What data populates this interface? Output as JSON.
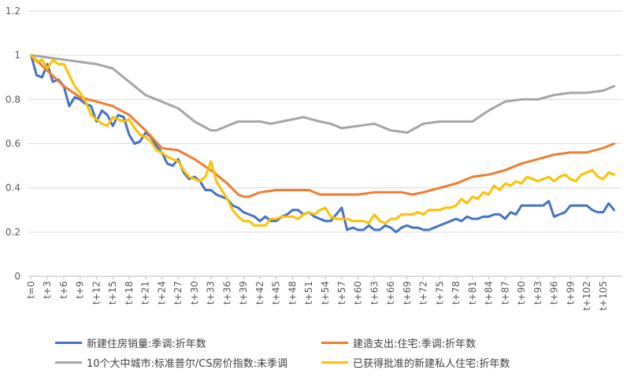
{
  "chart_data": {
    "type": "line",
    "title": "",
    "xlabel": "",
    "ylabel": "",
    "ylim": [
      0,
      1.2
    ],
    "yticks": [
      "0",
      "0.2",
      "0.4",
      "0.6",
      "0.8",
      "1",
      "1.2"
    ],
    "ytick_values": [
      0,
      0.2,
      0.4,
      0.6,
      0.8,
      1.0,
      1.2
    ],
    "x_count": 109,
    "xtick_labels": [
      "t=0",
      "t+3",
      "t+6",
      "t+9",
      "t+12",
      "t+15",
      "t+18",
      "t+21",
      "t+24",
      "t+27",
      "t+30",
      "t+33",
      "t+36",
      "t+39",
      "t+42",
      "t+45",
      "t+48",
      "t+51",
      "t+54",
      "t+57",
      "t+60",
      "t+63",
      "t+66",
      "t+69",
      "t+72",
      "t+75",
      "t+78",
      "t+81",
      "t+84",
      "t+87",
      "t+90",
      "t+93",
      "t+96",
      "t+99",
      "t+102",
      "t+105"
    ],
    "xtick_positions": [
      0,
      3,
      6,
      9,
      12,
      15,
      18,
      21,
      24,
      27,
      30,
      33,
      36,
      39,
      42,
      45,
      48,
      51,
      54,
      57,
      60,
      63,
      66,
      69,
      72,
      75,
      78,
      81,
      84,
      87,
      90,
      93,
      96,
      99,
      102,
      105
    ],
    "grid": "horizontal",
    "legend_position": "bottom",
    "series": [
      {
        "name": "新建住房销量:季调:折年数",
        "color": "#4472C4",
        "points": [
          [
            0,
            1.0
          ],
          [
            1,
            0.91
          ],
          [
            2,
            0.9
          ],
          [
            3,
            0.96
          ],
          [
            4,
            0.88
          ],
          [
            5,
            0.89
          ],
          [
            6,
            0.86
          ],
          [
            7,
            0.77
          ],
          [
            8,
            0.81
          ],
          [
            9,
            0.8
          ],
          [
            10,
            0.78
          ],
          [
            11,
            0.77
          ],
          [
            12,
            0.7
          ],
          [
            13,
            0.75
          ],
          [
            14,
            0.73
          ],
          [
            15,
            0.68
          ],
          [
            16,
            0.73
          ],
          [
            17,
            0.72
          ],
          [
            18,
            0.64
          ],
          [
            19,
            0.6
          ],
          [
            20,
            0.61
          ],
          [
            21,
            0.65
          ],
          [
            22,
            0.63
          ],
          [
            23,
            0.59
          ],
          [
            24,
            0.56
          ],
          [
            25,
            0.51
          ],
          [
            26,
            0.5
          ],
          [
            27,
            0.53
          ],
          [
            28,
            0.47
          ],
          [
            29,
            0.44
          ],
          [
            30,
            0.45
          ],
          [
            31,
            0.43
          ],
          [
            32,
            0.39
          ],
          [
            33,
            0.39
          ],
          [
            34,
            0.37
          ],
          [
            35,
            0.36
          ],
          [
            36,
            0.35
          ],
          [
            37,
            0.32
          ],
          [
            38,
            0.31
          ],
          [
            39,
            0.29
          ],
          [
            40,
            0.28
          ],
          [
            41,
            0.27
          ],
          [
            42,
            0.25
          ],
          [
            43,
            0.27
          ],
          [
            44,
            0.25
          ],
          [
            45,
            0.25
          ],
          [
            46,
            0.27
          ],
          [
            47,
            0.28
          ],
          [
            48,
            0.3
          ],
          [
            49,
            0.3
          ],
          [
            50,
            0.28
          ],
          [
            51,
            0.29
          ],
          [
            52,
            0.27
          ],
          [
            53,
            0.26
          ],
          [
            54,
            0.25
          ],
          [
            55,
            0.25
          ],
          [
            56,
            0.28
          ],
          [
            57,
            0.31
          ],
          [
            58,
            0.21
          ],
          [
            59,
            0.22
          ],
          [
            60,
            0.21
          ],
          [
            61,
            0.21
          ],
          [
            62,
            0.23
          ],
          [
            63,
            0.21
          ],
          [
            64,
            0.21
          ],
          [
            65,
            0.23
          ],
          [
            66,
            0.22
          ],
          [
            67,
            0.2
          ],
          [
            68,
            0.22
          ],
          [
            69,
            0.23
          ],
          [
            70,
            0.22
          ],
          [
            71,
            0.22
          ],
          [
            72,
            0.21
          ],
          [
            73,
            0.21
          ],
          [
            74,
            0.22
          ],
          [
            75,
            0.23
          ],
          [
            76,
            0.24
          ],
          [
            77,
            0.25
          ],
          [
            78,
            0.26
          ],
          [
            79,
            0.25
          ],
          [
            80,
            0.27
          ],
          [
            81,
            0.26
          ],
          [
            82,
            0.26
          ],
          [
            83,
            0.27
          ],
          [
            84,
            0.27
          ],
          [
            85,
            0.28
          ],
          [
            86,
            0.28
          ],
          [
            87,
            0.26
          ],
          [
            88,
            0.29
          ],
          [
            89,
            0.28
          ],
          [
            90,
            0.32
          ],
          [
            91,
            0.32
          ],
          [
            92,
            0.32
          ],
          [
            93,
            0.32
          ],
          [
            94,
            0.32
          ],
          [
            95,
            0.34
          ],
          [
            96,
            0.27
          ],
          [
            97,
            0.28
          ],
          [
            98,
            0.29
          ],
          [
            99,
            0.32
          ],
          [
            100,
            0.32
          ],
          [
            101,
            0.32
          ],
          [
            102,
            0.32
          ],
          [
            103,
            0.3
          ],
          [
            104,
            0.29
          ],
          [
            105,
            0.29
          ],
          [
            106,
            0.33
          ],
          [
            107,
            0.3
          ]
        ]
      },
      {
        "name": "建造支出:住宅:季调:折年数",
        "color": "#ED7D31",
        "points": [
          [
            0,
            1.0
          ],
          [
            3,
            0.93
          ],
          [
            6,
            0.86
          ],
          [
            9,
            0.81
          ],
          [
            12,
            0.79
          ],
          [
            15,
            0.77
          ],
          [
            18,
            0.73
          ],
          [
            21,
            0.66
          ],
          [
            24,
            0.58
          ],
          [
            27,
            0.57
          ],
          [
            30,
            0.53
          ],
          [
            33,
            0.48
          ],
          [
            36,
            0.42
          ],
          [
            38,
            0.37
          ],
          [
            39,
            0.36
          ],
          [
            40,
            0.36
          ],
          [
            42,
            0.38
          ],
          [
            45,
            0.39
          ],
          [
            48,
            0.39
          ],
          [
            51,
            0.39
          ],
          [
            53,
            0.37
          ],
          [
            57,
            0.37
          ],
          [
            60,
            0.37
          ],
          [
            63,
            0.38
          ],
          [
            66,
            0.38
          ],
          [
            68,
            0.38
          ],
          [
            70,
            0.37
          ],
          [
            72,
            0.38
          ],
          [
            75,
            0.4
          ],
          [
            78,
            0.42
          ],
          [
            81,
            0.45
          ],
          [
            84,
            0.46
          ],
          [
            87,
            0.48
          ],
          [
            90,
            0.51
          ],
          [
            93,
            0.53
          ],
          [
            96,
            0.55
          ],
          [
            99,
            0.56
          ],
          [
            102,
            0.56
          ],
          [
            105,
            0.58
          ],
          [
            107,
            0.6
          ]
        ]
      },
      {
        "name": "10个大中城市:标准普尔/CS房价指数:未季调",
        "color": "#A5A5A5",
        "points": [
          [
            0,
            1.0
          ],
          [
            3,
            0.99
          ],
          [
            6,
            0.98
          ],
          [
            9,
            0.97
          ],
          [
            12,
            0.96
          ],
          [
            15,
            0.94
          ],
          [
            18,
            0.88
          ],
          [
            21,
            0.82
          ],
          [
            24,
            0.79
          ],
          [
            27,
            0.76
          ],
          [
            30,
            0.7
          ],
          [
            33,
            0.66
          ],
          [
            34,
            0.66
          ],
          [
            36,
            0.68
          ],
          [
            38,
            0.7
          ],
          [
            40,
            0.7
          ],
          [
            42,
            0.7
          ],
          [
            44,
            0.69
          ],
          [
            46,
            0.7
          ],
          [
            48,
            0.71
          ],
          [
            50,
            0.72
          ],
          [
            53,
            0.7
          ],
          [
            55,
            0.69
          ],
          [
            57,
            0.67
          ],
          [
            60,
            0.68
          ],
          [
            63,
            0.69
          ],
          [
            66,
            0.66
          ],
          [
            69,
            0.65
          ],
          [
            72,
            0.69
          ],
          [
            75,
            0.7
          ],
          [
            78,
            0.7
          ],
          [
            81,
            0.7
          ],
          [
            84,
            0.75
          ],
          [
            87,
            0.79
          ],
          [
            90,
            0.8
          ],
          [
            93,
            0.8
          ],
          [
            96,
            0.82
          ],
          [
            99,
            0.83
          ],
          [
            102,
            0.83
          ],
          [
            105,
            0.84
          ],
          [
            107,
            0.86
          ]
        ]
      },
      {
        "name": "已获得批准的新建私人住宅:折年数",
        "color": "#FFC000",
        "points": [
          [
            0,
            1.0
          ],
          [
            1,
            0.97
          ],
          [
            2,
            0.98
          ],
          [
            3,
            0.94
          ],
          [
            4,
            0.98
          ],
          [
            5,
            0.96
          ],
          [
            6,
            0.96
          ],
          [
            7,
            0.91
          ],
          [
            8,
            0.86
          ],
          [
            9,
            0.83
          ],
          [
            10,
            0.79
          ],
          [
            11,
            0.73
          ],
          [
            12,
            0.71
          ],
          [
            13,
            0.69
          ],
          [
            14,
            0.68
          ],
          [
            15,
            0.72
          ],
          [
            16,
            0.71
          ],
          [
            17,
            0.7
          ],
          [
            18,
            0.71
          ],
          [
            19,
            0.67
          ],
          [
            20,
            0.64
          ],
          [
            21,
            0.63
          ],
          [
            22,
            0.61
          ],
          [
            23,
            0.57
          ],
          [
            24,
            0.56
          ],
          [
            25,
            0.54
          ],
          [
            26,
            0.53
          ],
          [
            27,
            0.52
          ],
          [
            28,
            0.48
          ],
          [
            29,
            0.45
          ],
          [
            30,
            0.44
          ],
          [
            31,
            0.43
          ],
          [
            32,
            0.45
          ],
          [
            33,
            0.52
          ],
          [
            34,
            0.43
          ],
          [
            35,
            0.39
          ],
          [
            36,
            0.35
          ],
          [
            37,
            0.3
          ],
          [
            38,
            0.27
          ],
          [
            39,
            0.25
          ],
          [
            40,
            0.25
          ],
          [
            41,
            0.23
          ],
          [
            42,
            0.23
          ],
          [
            43,
            0.23
          ],
          [
            44,
            0.26
          ],
          [
            45,
            0.26
          ],
          [
            46,
            0.27
          ],
          [
            47,
            0.27
          ],
          [
            48,
            0.27
          ],
          [
            49,
            0.26
          ],
          [
            50,
            0.28
          ],
          [
            51,
            0.29
          ],
          [
            52,
            0.28
          ],
          [
            53,
            0.3
          ],
          [
            54,
            0.31
          ],
          [
            55,
            0.27
          ],
          [
            56,
            0.26
          ],
          [
            57,
            0.26
          ],
          [
            58,
            0.26
          ],
          [
            59,
            0.25
          ],
          [
            60,
            0.25
          ],
          [
            61,
            0.25
          ],
          [
            62,
            0.24
          ],
          [
            63,
            0.28
          ],
          [
            64,
            0.25
          ],
          [
            65,
            0.24
          ],
          [
            66,
            0.26
          ],
          [
            67,
            0.26
          ],
          [
            68,
            0.28
          ],
          [
            69,
            0.28
          ],
          [
            70,
            0.28
          ],
          [
            71,
            0.29
          ],
          [
            72,
            0.28
          ],
          [
            73,
            0.3
          ],
          [
            74,
            0.3
          ],
          [
            75,
            0.3
          ],
          [
            76,
            0.31
          ],
          [
            77,
            0.31
          ],
          [
            78,
            0.32
          ],
          [
            79,
            0.35
          ],
          [
            80,
            0.33
          ],
          [
            81,
            0.36
          ],
          [
            82,
            0.35
          ],
          [
            83,
            0.38
          ],
          [
            84,
            0.37
          ],
          [
            85,
            0.41
          ],
          [
            86,
            0.39
          ],
          [
            87,
            0.42
          ],
          [
            88,
            0.41
          ],
          [
            89,
            0.43
          ],
          [
            90,
            0.42
          ],
          [
            91,
            0.45
          ],
          [
            92,
            0.44
          ],
          [
            93,
            0.43
          ],
          [
            94,
            0.44
          ],
          [
            95,
            0.45
          ],
          [
            96,
            0.43
          ],
          [
            97,
            0.45
          ],
          [
            98,
            0.46
          ],
          [
            99,
            0.44
          ],
          [
            100,
            0.43
          ],
          [
            101,
            0.46
          ],
          [
            102,
            0.47
          ],
          [
            103,
            0.48
          ],
          [
            104,
            0.45
          ],
          [
            105,
            0.44
          ],
          [
            106,
            0.47
          ],
          [
            107,
            0.46
          ]
        ]
      }
    ]
  }
}
